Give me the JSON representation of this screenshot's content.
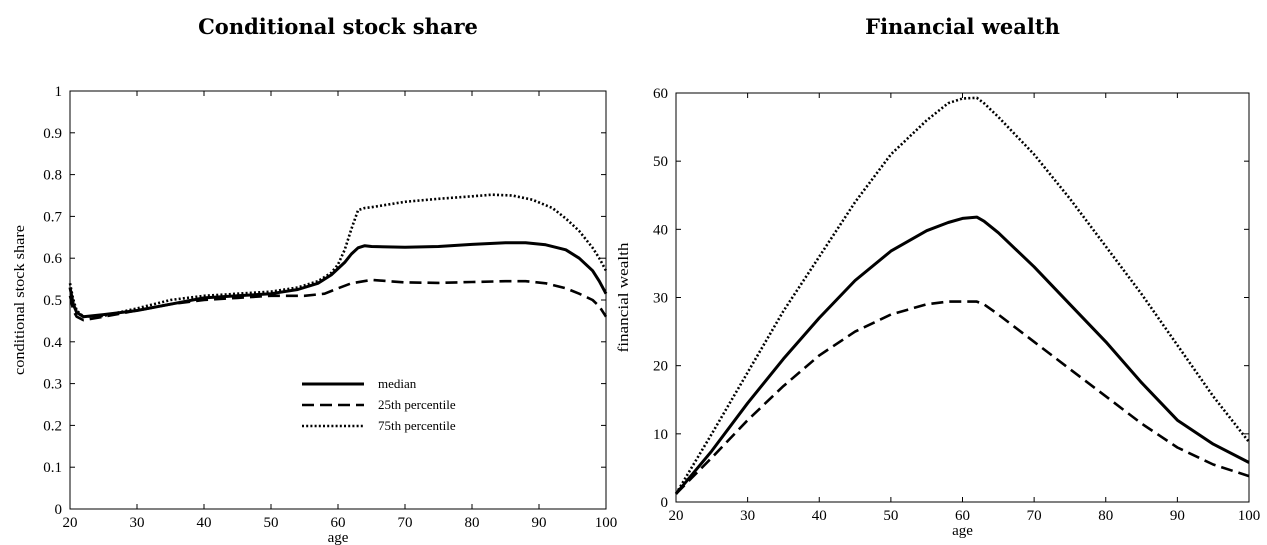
{
  "chart_data": [
    {
      "type": "line",
      "title": "Conditional stock share",
      "xlabel": "age",
      "ylabel": "conditional stock share",
      "xlim": [
        20,
        100
      ],
      "ylim": [
        0,
        1
      ],
      "xticks": [
        20,
        30,
        40,
        50,
        60,
        70,
        80,
        90,
        100
      ],
      "yticks": [
        0,
        0.1,
        0.2,
        0.3,
        0.4,
        0.5,
        0.6,
        0.7,
        0.8,
        0.9,
        1
      ],
      "grid": false,
      "legend_position": "bottom-right",
      "series": [
        {
          "name": "median",
          "style": "solid",
          "x": [
            20,
            20.5,
            21,
            22,
            25,
            30,
            35,
            40,
            45,
            50,
            54,
            57,
            59,
            61,
            62,
            63,
            64,
            65,
            70,
            75,
            80,
            85,
            88,
            91,
            94,
            96,
            98,
            99,
            100
          ],
          "y": [
            0.53,
            0.49,
            0.47,
            0.46,
            0.465,
            0.475,
            0.49,
            0.505,
            0.51,
            0.515,
            0.525,
            0.54,
            0.56,
            0.59,
            0.61,
            0.625,
            0.63,
            0.628,
            0.626,
            0.628,
            0.633,
            0.637,
            0.637,
            0.632,
            0.62,
            0.6,
            0.57,
            0.545,
            0.515
          ]
        },
        {
          "name": "25th percentile",
          "style": "dashed",
          "x": [
            20,
            20.5,
            21,
            22,
            25,
            30,
            35,
            40,
            45,
            50,
            55,
            58,
            60,
            62,
            65,
            70,
            75,
            80,
            85,
            88,
            91,
            94,
            96,
            98,
            99,
            100
          ],
          "y": [
            0.51,
            0.475,
            0.46,
            0.452,
            0.46,
            0.475,
            0.49,
            0.5,
            0.505,
            0.51,
            0.51,
            0.515,
            0.528,
            0.54,
            0.548,
            0.542,
            0.541,
            0.543,
            0.545,
            0.545,
            0.54,
            0.528,
            0.515,
            0.5,
            0.485,
            0.46
          ]
        },
        {
          "name": "75th percentile",
          "style": "dotted",
          "x": [
            20,
            20.5,
            21,
            22,
            25,
            30,
            35,
            40,
            45,
            50,
            54,
            57,
            59,
            60,
            61,
            62,
            63,
            64,
            65,
            70,
            75,
            80,
            83,
            86,
            89,
            92,
            94,
            96,
            98,
            99,
            100
          ],
          "y": [
            0.54,
            0.5,
            0.475,
            0.46,
            0.462,
            0.48,
            0.5,
            0.51,
            0.515,
            0.52,
            0.53,
            0.545,
            0.565,
            0.585,
            0.62,
            0.67,
            0.715,
            0.72,
            0.722,
            0.735,
            0.742,
            0.748,
            0.752,
            0.75,
            0.74,
            0.72,
            0.695,
            0.665,
            0.625,
            0.6,
            0.57
          ]
        }
      ]
    },
    {
      "type": "line",
      "title": "Financial wealth",
      "xlabel": "age",
      "ylabel": "financial wealth",
      "xlim": [
        20,
        100
      ],
      "ylim": [
        0,
        60
      ],
      "xticks": [
        20,
        30,
        40,
        50,
        60,
        70,
        80,
        90,
        100
      ],
      "yticks": [
        0,
        10,
        20,
        30,
        40,
        50,
        60
      ],
      "grid": false,
      "series": [
        {
          "name": "median",
          "style": "solid",
          "x": [
            20,
            25,
            30,
            35,
            40,
            45,
            50,
            55,
            58,
            60,
            62,
            63,
            65,
            68,
            70,
            75,
            80,
            85,
            90,
            95,
            100
          ],
          "y": [
            1.2,
            7.5,
            14.5,
            21,
            27,
            32.5,
            36.8,
            39.8,
            41,
            41.6,
            41.8,
            41.2,
            39.5,
            36.5,
            34.5,
            29,
            23.5,
            17.5,
            12,
            8.5,
            5.8
          ]
        },
        {
          "name": "25th percentile",
          "style": "dashed",
          "x": [
            20,
            25,
            30,
            35,
            40,
            45,
            50,
            55,
            58,
            60,
            62,
            63,
            65,
            70,
            75,
            80,
            85,
            90,
            95,
            100
          ],
          "y": [
            1.2,
            6.5,
            12,
            17,
            21.5,
            25,
            27.5,
            29,
            29.4,
            29.4,
            29.4,
            29,
            27.5,
            23.5,
            19.5,
            15.5,
            11.5,
            8,
            5.5,
            3.8
          ]
        },
        {
          "name": "75th percentile",
          "style": "dotted",
          "x": [
            20,
            25,
            30,
            35,
            40,
            45,
            50,
            55,
            58,
            60,
            62,
            63,
            65,
            70,
            75,
            80,
            85,
            90,
            95,
            100
          ],
          "y": [
            1.2,
            10,
            19,
            28,
            36,
            44,
            51,
            56,
            58.5,
            59.2,
            59.3,
            58.5,
            56.5,
            51,
            44.5,
            37.5,
            30.5,
            23,
            15.5,
            8.8
          ]
        }
      ]
    }
  ]
}
